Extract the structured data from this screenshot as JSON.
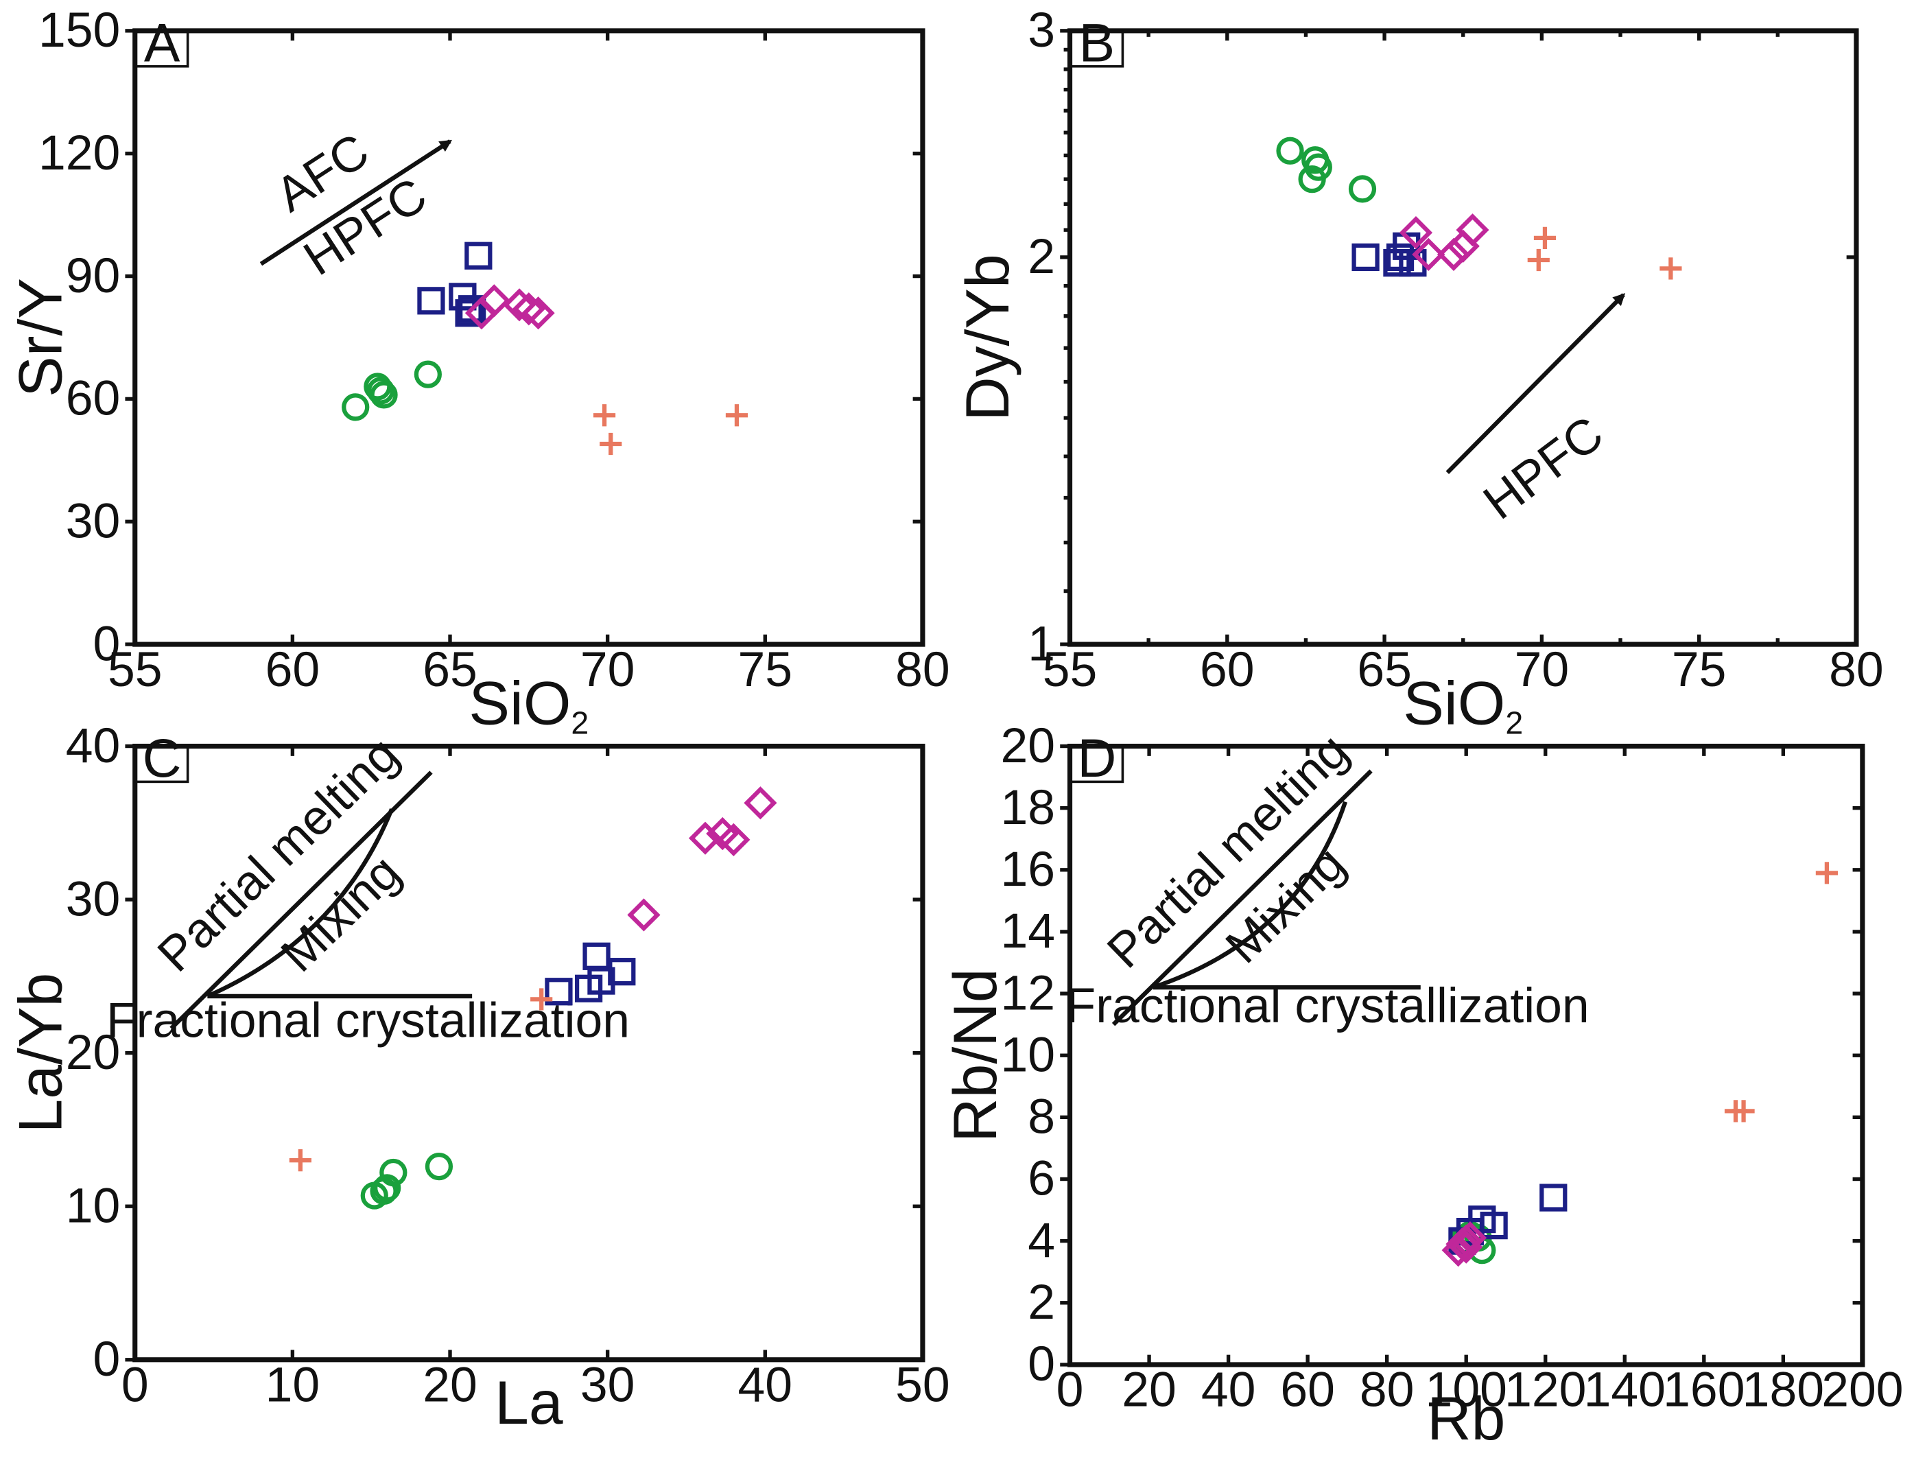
{
  "colors": {
    "circle": "#1aa03c",
    "square": "#1c1f86",
    "diamond": "#c0279a",
    "plus": "#e8785f",
    "axis": "#111111"
  },
  "chart_data": [
    {
      "type": "scatter",
      "panel": "A",
      "xlabel": "SiO",
      "xlabel_sub": "2",
      "ylabel": "Sr/Y",
      "xlim": [
        55,
        80
      ],
      "ylim": [
        0,
        150
      ],
      "xticks": [
        55,
        60,
        65,
        70,
        75,
        80
      ],
      "yticks": [
        0,
        30,
        60,
        90,
        120,
        150
      ],
      "yscale": "linear",
      "annotations": [
        "AFC",
        "HPFC"
      ],
      "arrow": {
        "from": [
          59,
          93
        ],
        "to": [
          65,
          123
        ]
      },
      "series": [
        {
          "name": "circle",
          "marker": "circle",
          "points": [
            [
              62.0,
              58
            ],
            [
              62.7,
              63
            ],
            [
              62.8,
              62
            ],
            [
              62.9,
              61
            ],
            [
              64.3,
              66
            ]
          ]
        },
        {
          "name": "square",
          "marker": "square",
          "points": [
            [
              64.4,
              84
            ],
            [
              65.4,
              85
            ],
            [
              65.6,
              81
            ],
            [
              65.7,
              82
            ],
            [
              65.9,
              95
            ]
          ]
        },
        {
          "name": "diamond",
          "marker": "diamond",
          "points": [
            [
              66.0,
              81
            ],
            [
              66.4,
              84
            ],
            [
              67.2,
              83
            ],
            [
              67.5,
              82
            ],
            [
              67.8,
              81
            ]
          ]
        },
        {
          "name": "plus",
          "marker": "plus",
          "points": [
            [
              69.9,
              56
            ],
            [
              70.1,
              49
            ],
            [
              74.1,
              56
            ]
          ]
        }
      ]
    },
    {
      "type": "scatter",
      "panel": "B",
      "xlabel": "SiO",
      "xlabel_sub": "2",
      "ylabel": "Dy/Yb",
      "xlim": [
        55,
        80
      ],
      "ylim": [
        1,
        3
      ],
      "xticks": [
        55,
        60,
        65,
        70,
        75,
        80
      ],
      "yticks": [
        1,
        2,
        3
      ],
      "yscale": "log",
      "annotations": [
        "HPFC"
      ],
      "arrow": {
        "from": [
          67,
          1.36
        ],
        "to": [
          72.6,
          1.87
        ]
      },
      "series": [
        {
          "name": "circle",
          "marker": "circle",
          "points": [
            [
              62.0,
              2.42
            ],
            [
              62.7,
              2.3
            ],
            [
              62.8,
              2.38
            ],
            [
              62.9,
              2.35
            ],
            [
              64.3,
              2.26
            ]
          ]
        },
        {
          "name": "square",
          "marker": "square",
          "points": [
            [
              64.4,
              2.0
            ],
            [
              65.4,
              1.98
            ],
            [
              65.5,
              2.0
            ],
            [
              65.7,
              2.04
            ],
            [
              65.9,
              1.98
            ]
          ]
        },
        {
          "name": "diamond",
          "marker": "diamond",
          "points": [
            [
              66.0,
              2.09
            ],
            [
              66.4,
              2.01
            ],
            [
              67.2,
              2.01
            ],
            [
              67.5,
              2.04
            ],
            [
              67.8,
              2.1
            ]
          ]
        },
        {
          "name": "plus",
          "marker": "plus",
          "points": [
            [
              69.9,
              1.99
            ],
            [
              70.1,
              2.07
            ],
            [
              74.1,
              1.96
            ]
          ]
        }
      ]
    },
    {
      "type": "scatter",
      "panel": "C",
      "xlabel": "La",
      "ylabel": "La/Yb",
      "xlim": [
        0,
        50
      ],
      "ylim": [
        0,
        40
      ],
      "xticks": [
        0,
        10,
        20,
        30,
        40,
        50
      ],
      "yticks": [
        0,
        10,
        20,
        30,
        40
      ],
      "yscale": "linear",
      "annotations": [
        "Partial melting",
        "Mixing",
        "Fractional crystallization"
      ],
      "schematic": {
        "partial_melting": [
          [
            2.3,
            21.6
          ],
          [
            18.8,
            38.3
          ]
        ],
        "fractional_crystallization": [
          [
            4.6,
            23.7
          ],
          [
            21.4,
            23.7
          ]
        ],
        "mixing_curve": [
          [
            4.6,
            23.7
          ],
          [
            13.0,
            27.5
          ],
          [
            16.3,
            35.9
          ]
        ]
      },
      "series": [
        {
          "name": "circle",
          "marker": "circle",
          "points": [
            [
              15.2,
              10.7
            ],
            [
              15.8,
              11.0
            ],
            [
              16.0,
              11.2
            ],
            [
              16.4,
              12.2
            ],
            [
              19.3,
              12.6
            ]
          ]
        },
        {
          "name": "square",
          "marker": "square",
          "points": [
            [
              26.9,
              24.0
            ],
            [
              28.8,
              24.2
            ],
            [
              29.3,
              26.3
            ],
            [
              29.6,
              24.7
            ],
            [
              30.9,
              25.3
            ]
          ]
        },
        {
          "name": "diamond",
          "marker": "diamond",
          "points": [
            [
              32.3,
              29.0
            ],
            [
              36.2,
              34.0
            ],
            [
              37.3,
              34.3
            ],
            [
              38.0,
              33.9
            ],
            [
              39.7,
              36.3
            ]
          ]
        },
        {
          "name": "plus",
          "marker": "plus",
          "points": [
            [
              10.5,
              13.0
            ],
            [
              25.8,
              23.5
            ]
          ]
        }
      ]
    },
    {
      "type": "scatter",
      "panel": "D",
      "xlabel": "Rb",
      "ylabel": "Rb/Nd",
      "xlim": [
        0,
        200
      ],
      "ylim": [
        0,
        20
      ],
      "xticks": [
        0,
        20,
        40,
        60,
        80,
        100,
        120,
        140,
        160,
        180,
        200
      ],
      "yticks": [
        0,
        2,
        4,
        6,
        8,
        10,
        12,
        14,
        16,
        18,
        20
      ],
      "yscale": "linear",
      "annotations": [
        "Partial melting",
        "Mixing",
        "Fractional crystallization"
      ],
      "schematic": {
        "partial_melting": [
          [
            11.0,
            11.0
          ],
          [
            76.0,
            19.2
          ]
        ],
        "fractional_crystallization": [
          [
            21.0,
            12.2
          ],
          [
            88.5,
            12.2
          ]
        ],
        "mixing_curve": [
          [
            21.0,
            12.2
          ],
          [
            58.0,
            13.8
          ],
          [
            69.5,
            18.2
          ]
        ]
      },
      "series": [
        {
          "name": "circle",
          "marker": "circle",
          "points": [
            [
              100.0,
              3.9
            ],
            [
              103.0,
              4.1
            ],
            [
              104.0,
              3.7
            ],
            [
              99.0,
              4.0
            ],
            [
              101.0,
              4.2
            ]
          ]
        },
        {
          "name": "square",
          "marker": "square",
          "points": [
            [
              99.0,
              4.0
            ],
            [
              101.0,
              4.3
            ],
            [
              104.0,
              4.7
            ],
            [
              107.0,
              4.5
            ],
            [
              122.0,
              5.4
            ]
          ]
        },
        {
          "name": "diamond",
          "marker": "diamond",
          "points": [
            [
              98.0,
              3.7
            ],
            [
              99.0,
              3.9
            ],
            [
              100.0,
              4.0
            ],
            [
              101.0,
              4.1
            ],
            [
              100.0,
              3.8
            ]
          ]
        },
        {
          "name": "plus",
          "marker": "plus",
          "points": [
            [
              168.0,
              8.2
            ],
            [
              170.0,
              8.2
            ],
            [
              191.0,
              15.9
            ]
          ]
        }
      ]
    }
  ]
}
